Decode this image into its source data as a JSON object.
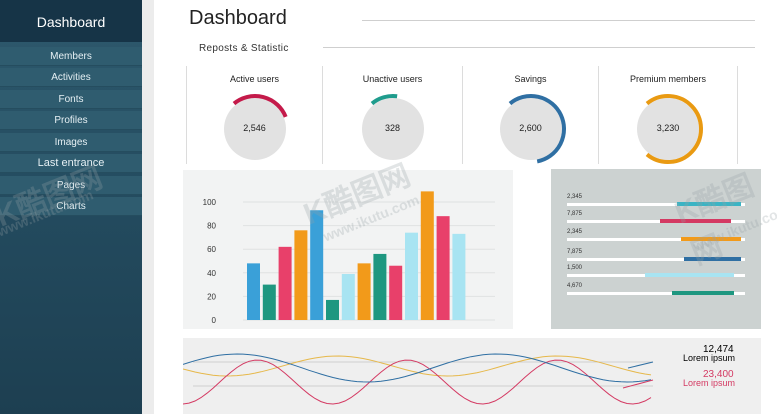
{
  "sidebar": {
    "header": "Dashboard",
    "items": [
      {
        "label": "Members"
      },
      {
        "label": "Activities"
      },
      {
        "label": "Fonts"
      },
      {
        "label": "Profiles"
      },
      {
        "label": "Images"
      },
      {
        "label": "Last entrance"
      },
      {
        "label": "Pages"
      },
      {
        "label": "Charts"
      }
    ]
  },
  "page": {
    "title": "Dashboard",
    "subtitle": "Reposts & Statistic"
  },
  "stats": [
    {
      "label": "Active users",
      "value": "2,546",
      "color": "#c41a4a",
      "fraction": 0.3
    },
    {
      "label": "Unactive users",
      "value": "328",
      "color": "#1f9c8d",
      "fraction": 0.13
    },
    {
      "label": "Savings",
      "value": "2,600",
      "color": "#2f6fa3",
      "fraction": 0.58
    },
    {
      "label": "Premium members",
      "value": "3,230",
      "color": "#e99a12",
      "fraction": 0.72
    }
  ],
  "chart_data": [
    {
      "type": "bar",
      "ylim": [
        0,
        110
      ],
      "yticks": [
        "100",
        "80",
        "60",
        "40",
        "20",
        "0"
      ],
      "values": [
        48,
        30,
        62,
        76,
        93,
        17,
        39,
        48,
        56,
        46,
        74,
        109,
        88,
        73
      ],
      "colors": [
        "#3aa0d8",
        "#1e9780",
        "#e8406a",
        "#f29a1a",
        "#3aa0d8",
        "#1e9780",
        "#a8e4f2",
        "#f29a1a",
        "#1e9780",
        "#e8406a",
        "#a8e4f2",
        "#f29a1a",
        "#e8406a",
        "#a8e4f2"
      ]
    },
    {
      "type": "bar",
      "orientation": "horizontal",
      "rows": [
        {
          "label": "2,345",
          "color": "#3ab4c4",
          "start": 0.62,
          "end": 0.98
        },
        {
          "label": "7,875",
          "color": "#d43a63",
          "start": 0.52,
          "end": 0.92
        },
        {
          "label": "2,345",
          "color": "#f29a1a",
          "start": 0.64,
          "end": 0.98
        },
        {
          "label": "7,875",
          "color": "#2f6fa3",
          "start": 0.66,
          "end": 0.98
        },
        {
          "label": "1,500",
          "color": "#a8e4f2",
          "start": 0.44,
          "end": 0.94
        },
        {
          "label": "4,670",
          "color": "#1e9780",
          "start": 0.59,
          "end": 0.94
        }
      ]
    },
    {
      "type": "line",
      "series": [
        {
          "color": "#e6b84a"
        },
        {
          "color": "#d43a63"
        },
        {
          "color": "#2f6fa3"
        }
      ],
      "legend": [
        {
          "value": "12,474",
          "text": "Lorem ipsum",
          "color": "#222222"
        },
        {
          "value": "23,400",
          "text": "Lorem ipsum",
          "color": "#d43a63"
        }
      ]
    }
  ],
  "watermark": {
    "brand": "K酷图网",
    "url": "www.ikutu.com"
  }
}
